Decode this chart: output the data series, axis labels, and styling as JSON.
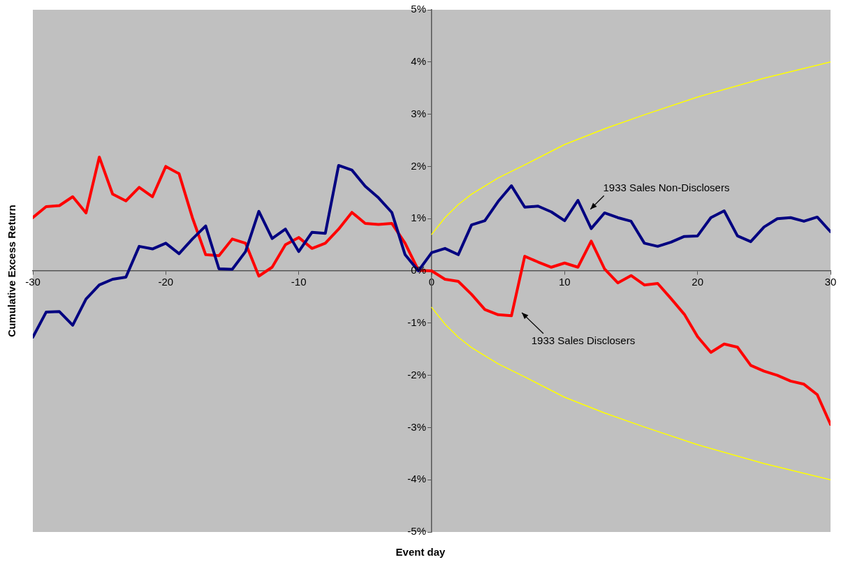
{
  "chart_data": {
    "type": "line",
    "xlabel": "Event day",
    "ylabel": "Cumulative Excess Return",
    "x": [
      -30,
      -29,
      -28,
      -27,
      -26,
      -25,
      -24,
      -23,
      -22,
      -21,
      -20,
      -19,
      -18,
      -17,
      -16,
      -15,
      -14,
      -13,
      -12,
      -11,
      -10,
      -9,
      -8,
      -7,
      -6,
      -5,
      -4,
      -3,
      -2,
      -1,
      0,
      1,
      2,
      3,
      4,
      5,
      6,
      7,
      8,
      9,
      10,
      11,
      12,
      13,
      14,
      15,
      16,
      17,
      18,
      19,
      20,
      21,
      22,
      23,
      24,
      25,
      26,
      27,
      28,
      29,
      30
    ],
    "xlim": [
      -30,
      30
    ],
    "xticks": [
      -30,
      -20,
      -10,
      0,
      10,
      20,
      30
    ],
    "ylim": [
      -5,
      5
    ],
    "yticks": [
      {
        "value": -5,
        "label": "-5%"
      },
      {
        "value": -4,
        "label": "-4%"
      },
      {
        "value": -3,
        "label": "-3%"
      },
      {
        "value": -2,
        "label": "-2%"
      },
      {
        "value": -1,
        "label": "-1%"
      },
      {
        "value": 0,
        "label": "0%"
      },
      {
        "value": 1,
        "label": "1%"
      },
      {
        "value": 2,
        "label": "2%"
      },
      {
        "value": 3,
        "label": "3%"
      },
      {
        "value": 4,
        "label": "4%"
      },
      {
        "value": 5,
        "label": "5%"
      }
    ],
    "grid": false,
    "legend": false,
    "marker": "none",
    "line_style": "solid",
    "series": [
      {
        "name": "1933 Sales Non-Disclosers",
        "color": "#000080",
        "values": [
          -1.27,
          -0.79,
          -0.78,
          -1.04,
          -0.54,
          -0.27,
          -0.16,
          -0.12,
          0.47,
          0.42,
          0.53,
          0.33,
          0.61,
          0.86,
          0.04,
          0.03,
          0.37,
          1.14,
          0.62,
          0.8,
          0.37,
          0.74,
          0.72,
          2.02,
          1.93,
          1.62,
          1.4,
          1.12,
          0.31,
          0.0,
          0.35,
          0.43,
          0.31,
          0.88,
          0.96,
          1.33,
          1.63,
          1.22,
          1.24,
          1.13,
          0.96,
          1.35,
          0.81,
          1.11,
          1.02,
          0.95,
          0.53,
          0.47,
          0.55,
          0.66,
          0.67,
          1.02,
          1.15,
          0.67,
          0.56,
          0.84,
          1.0,
          1.02,
          0.95,
          1.03,
          0.75
        ]
      },
      {
        "name": "1933 Sales Disclosers",
        "color": "#ff0000",
        "values": [
          1.02,
          1.23,
          1.25,
          1.42,
          1.11,
          2.18,
          1.47,
          1.34,
          1.6,
          1.42,
          2.0,
          1.86,
          1.02,
          0.31,
          0.29,
          0.61,
          0.53,
          -0.1,
          0.07,
          0.5,
          0.64,
          0.43,
          0.53,
          0.8,
          1.12,
          0.91,
          0.89,
          0.91,
          0.53,
          0.01,
          0.0,
          -0.16,
          -0.2,
          -0.45,
          -0.74,
          -0.84,
          -0.86,
          0.28,
          0.17,
          0.07,
          0.15,
          0.07,
          0.57,
          0.04,
          -0.23,
          -0.09,
          -0.27,
          -0.24,
          -0.53,
          -0.83,
          -1.26,
          -1.56,
          -1.4,
          -1.46,
          -1.81,
          -1.92,
          -2.0,
          -2.11,
          -2.17,
          -2.37,
          -2.94
        ]
      },
      {
        "color": "#ffff00",
        "x": [
          0,
          1,
          2,
          3,
          5,
          7,
          10,
          13,
          16,
          20,
          25,
          30
        ],
        "values": [
          0.7,
          1.02,
          1.27,
          1.47,
          1.78,
          2.03,
          2.42,
          2.72,
          2.99,
          3.33,
          3.69,
          4.0
        ]
      },
      {
        "color": "#ffff00",
        "x": [
          0,
          1,
          2,
          3,
          5,
          7,
          10,
          13,
          16,
          20,
          25,
          30
        ],
        "values": [
          -0.7,
          -1.02,
          -1.27,
          -1.47,
          -1.78,
          -2.03,
          -2.42,
          -2.72,
          -2.99,
          -3.33,
          -3.69,
          -4.0
        ]
      }
    ]
  }
}
